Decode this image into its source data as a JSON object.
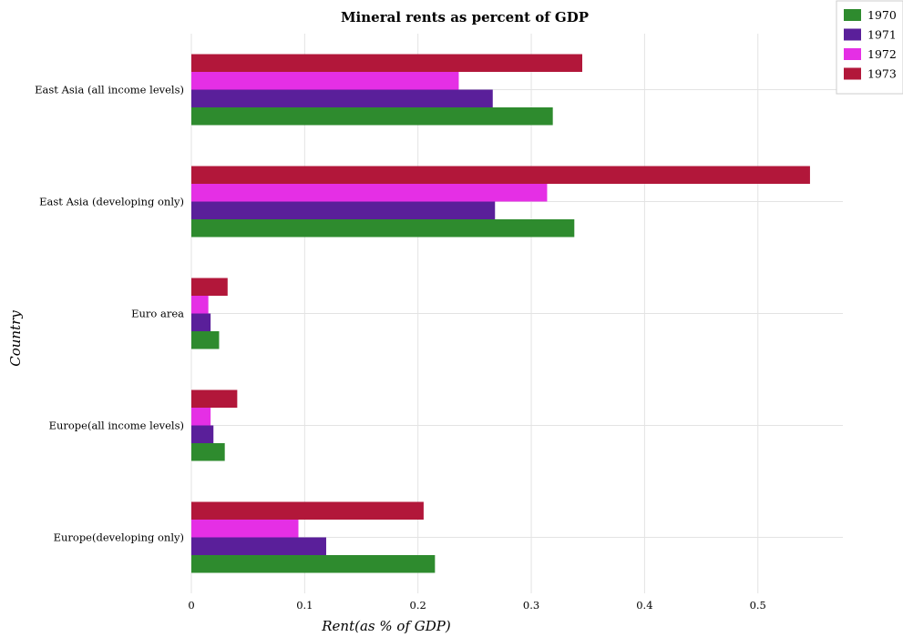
{
  "chart_data": {
    "type": "bar",
    "orientation": "horizontal",
    "title": "Mineral rents as percent of GDP",
    "xlabel": "Rent(as % of GDP)",
    "ylabel": "Country",
    "xlim": [
      0,
      0.575
    ],
    "xticks": [
      "0",
      "0.1",
      "0.2",
      "0.3",
      "0.4",
      "0.5"
    ],
    "grid": true,
    "legend_position": "top-right",
    "categories": [
      "East Asia (all income levels)",
      "East Asia (developing only)",
      "Euro area",
      "Europe(all income levels)",
      "Europe(developing only)"
    ],
    "series": [
      {
        "name": "1970",
        "color": "#2e8b2e",
        "values": [
          0.319,
          0.338,
          0.0245,
          0.0295,
          0.215
        ]
      },
      {
        "name": "1971",
        "color": "#5a1f9a",
        "values": [
          0.266,
          0.268,
          0.017,
          0.0195,
          0.119
        ]
      },
      {
        "name": "1972",
        "color": "#e52fe5",
        "values": [
          0.236,
          0.314,
          0.015,
          0.017,
          0.0945
        ]
      },
      {
        "name": "1973",
        "color": "#b2173a",
        "values": [
          0.345,
          0.546,
          0.032,
          0.0405,
          0.205
        ]
      }
    ]
  }
}
